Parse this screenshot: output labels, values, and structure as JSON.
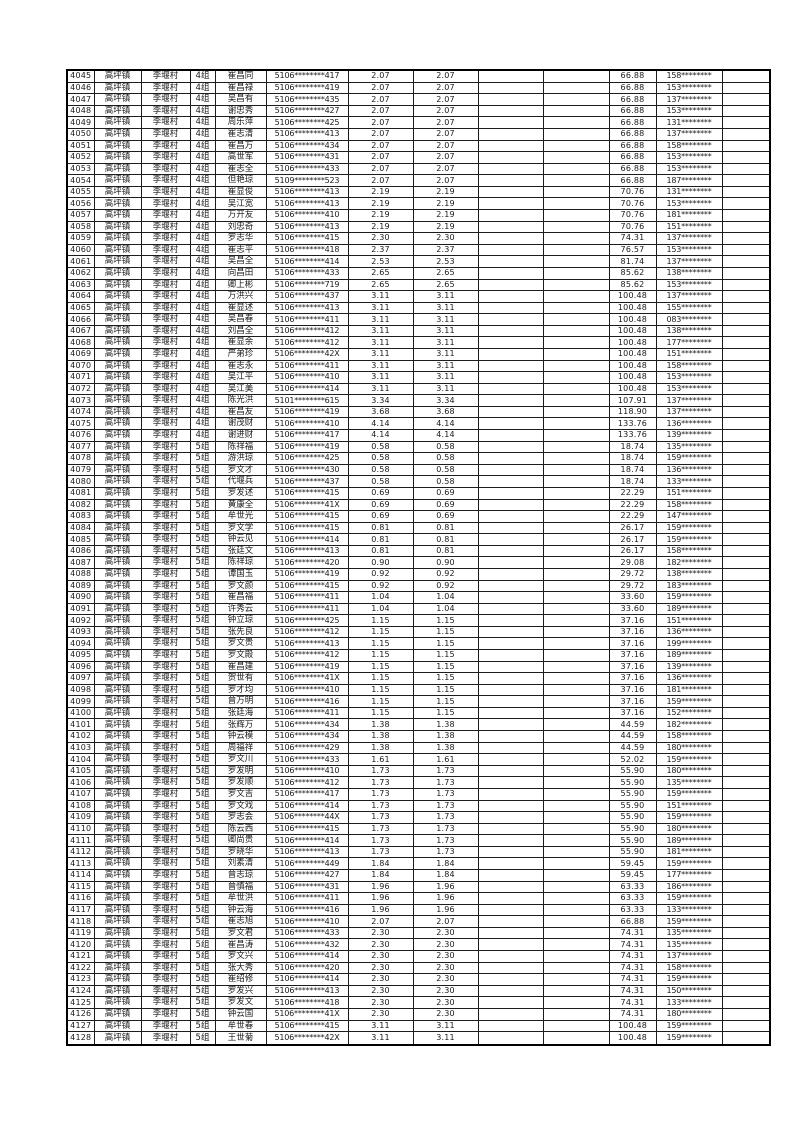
{
  "page": {
    "background": "#ffffff",
    "text_color": "#1a1a1a",
    "border_color": "#000000"
  },
  "table": {
    "town": "高坪镇",
    "village": "李堰村",
    "rows": [
      [
        "4045",
        "4组",
        "崔昌同",
        "5106********417",
        "2.07",
        "2.07",
        "66.88",
        "158********"
      ],
      [
        "4046",
        "4组",
        "崔昌禄",
        "5106********419",
        "2.07",
        "2.07",
        "66.88",
        "153********"
      ],
      [
        "4047",
        "4组",
        "吴昌有",
        "5106********435",
        "2.07",
        "2.07",
        "66.88",
        "137********"
      ],
      [
        "4048",
        "4组",
        "谢忠秀",
        "5106********427",
        "2.07",
        "2.07",
        "66.88",
        "153********"
      ],
      [
        "4049",
        "4组",
        "周乐萍",
        "5106********425",
        "2.07",
        "2.07",
        "66.88",
        "131********"
      ],
      [
        "4050",
        "4组",
        "崔志清",
        "5106********413",
        "2.07",
        "2.07",
        "66.88",
        "137********"
      ],
      [
        "4051",
        "4组",
        "崔昌万",
        "5106********434",
        "2.07",
        "2.07",
        "66.88",
        "158********"
      ],
      [
        "4052",
        "4组",
        "高世军",
        "5106********431",
        "2.07",
        "2.07",
        "66.88",
        "153********"
      ],
      [
        "4053",
        "4组",
        "崔志全",
        "5106********433",
        "2.07",
        "2.07",
        "66.88",
        "153********"
      ],
      [
        "4054",
        "4组",
        "但艳琼",
        "5109********523",
        "2.07",
        "2.07",
        "66.88",
        "187********"
      ],
      [
        "4055",
        "4组",
        "崔显俊",
        "5106********413",
        "2.19",
        "2.19",
        "70.76",
        "131********"
      ],
      [
        "4056",
        "4组",
        "吴江宽",
        "5106********413",
        "2.19",
        "2.19",
        "70.76",
        "153********"
      ],
      [
        "4057",
        "4组",
        "万开友",
        "5106********410",
        "2.19",
        "2.19",
        "70.76",
        "181********"
      ],
      [
        "4058",
        "4组",
        "刘忠奇",
        "5106********413",
        "2.19",
        "2.19",
        "70.76",
        "151********"
      ],
      [
        "4059",
        "4组",
        "罗志华",
        "5106********415",
        "2.30",
        "2.30",
        "74.31",
        "137********"
      ],
      [
        "4060",
        "4组",
        "崔志平",
        "5106********418",
        "2.37",
        "2.37",
        "76.57",
        "153********"
      ],
      [
        "4061",
        "4组",
        "吴昌全",
        "5106********414",
        "2.53",
        "2.53",
        "81.74",
        "137********"
      ],
      [
        "4062",
        "4组",
        "向昌田",
        "5106********433",
        "2.65",
        "2.65",
        "85.62",
        "138********"
      ],
      [
        "4063",
        "4组",
        "卿上彬",
        "5106********719",
        "2.65",
        "2.65",
        "85.62",
        "153********"
      ],
      [
        "4064",
        "4组",
        "万洪兴",
        "5106********437",
        "3.11",
        "3.11",
        "100.48",
        "137********"
      ],
      [
        "4065",
        "4组",
        "崔显述",
        "5106********413",
        "3.11",
        "3.11",
        "100.48",
        "155********"
      ],
      [
        "4066",
        "4组",
        "吴昌春",
        "5106********411",
        "3.11",
        "3.11",
        "100.48",
        "083********"
      ],
      [
        "4067",
        "4组",
        "刘昌全",
        "5106********412",
        "3.11",
        "3.11",
        "100.48",
        "138********"
      ],
      [
        "4068",
        "4组",
        "崔显余",
        "5106********412",
        "3.11",
        "3.11",
        "100.48",
        "177********"
      ],
      [
        "4069",
        "4组",
        "严弟珍",
        "5106********42X",
        "3.11",
        "3.11",
        "100.48",
        "151********"
      ],
      [
        "4070",
        "4组",
        "崔志永",
        "5106********411",
        "3.11",
        "3.11",
        "100.48",
        "158********"
      ],
      [
        "4071",
        "4组",
        "吴江平",
        "5106********410",
        "3.11",
        "3.11",
        "100.48",
        "153********"
      ],
      [
        "4072",
        "4组",
        "吴江美",
        "5106********414",
        "3.11",
        "3.11",
        "100.48",
        "153********"
      ],
      [
        "4073",
        "4组",
        "陈光洪",
        "5101********615",
        "3.34",
        "3.34",
        "107.91",
        "137********"
      ],
      [
        "4074",
        "4组",
        "崔昌友",
        "5106********419",
        "3.68",
        "3.68",
        "118.90",
        "137********"
      ],
      [
        "4075",
        "4组",
        "谢茂财",
        "5106********410",
        "4.14",
        "4.14",
        "133.76",
        "136********"
      ],
      [
        "4076",
        "4组",
        "谢进财",
        "5106********417",
        "4.14",
        "4.14",
        "133.76",
        "139********"
      ],
      [
        "4077",
        "5组",
        "陈祥福",
        "5106********419",
        "0.58",
        "0.58",
        "18.74",
        "135********"
      ],
      [
        "4078",
        "5组",
        "游洪琼",
        "5106********425",
        "0.58",
        "0.58",
        "18.74",
        "159********"
      ],
      [
        "4079",
        "5组",
        "罗文才",
        "5106********430",
        "0.58",
        "0.58",
        "18.74",
        "136********"
      ],
      [
        "4080",
        "5组",
        "代堰兵",
        "5106********437",
        "0.58",
        "0.58",
        "18.74",
        "133********"
      ],
      [
        "4081",
        "5组",
        "罗发述",
        "5106********415",
        "0.69",
        "0.69",
        "22.29",
        "151********"
      ],
      [
        "4082",
        "5组",
        "黄康全",
        "5106********41X",
        "0.69",
        "0.69",
        "22.29",
        "158********"
      ],
      [
        "4083",
        "5组",
        "牟世光",
        "5106********415",
        "0.69",
        "0.69",
        "22.29",
        "147********"
      ],
      [
        "4084",
        "5组",
        "罗文学",
        "5106********415",
        "0.81",
        "0.81",
        "26.17",
        "159********"
      ],
      [
        "4085",
        "5组",
        "钟云见",
        "5106********414",
        "0.81",
        "0.81",
        "26.17",
        "159********"
      ],
      [
        "4086",
        "5组",
        "张廷文",
        "5106********413",
        "0.81",
        "0.81",
        "26.17",
        "158********"
      ],
      [
        "4087",
        "5组",
        "陈祥琼",
        "5106********420",
        "0.90",
        "0.90",
        "29.08",
        "182********"
      ],
      [
        "4088",
        "5组",
        "谭国玉",
        "5106********419",
        "0.92",
        "0.92",
        "29.72",
        "138********"
      ],
      [
        "4089",
        "5组",
        "罗文颜",
        "5106********415",
        "0.92",
        "0.92",
        "29.72",
        "183********"
      ],
      [
        "4090",
        "5组",
        "崔昌福",
        "5106********411",
        "1.04",
        "1.04",
        "33.60",
        "159********"
      ],
      [
        "4091",
        "5组",
        "许秀云",
        "5106********411",
        "1.04",
        "1.04",
        "33.60",
        "189********"
      ],
      [
        "4092",
        "5组",
        "钟立琼",
        "5106********425",
        "1.15",
        "1.15",
        "37.16",
        "151********"
      ],
      [
        "4093",
        "5组",
        "张先良",
        "5106********412",
        "1.15",
        "1.15",
        "37.16",
        "136********"
      ],
      [
        "4094",
        "5组",
        "罗文贵",
        "5106********413",
        "1.15",
        "1.15",
        "37.16",
        "199********"
      ],
      [
        "4095",
        "5组",
        "罗文殿",
        "5106********412",
        "1.15",
        "1.15",
        "37.16",
        "189********"
      ],
      [
        "4096",
        "5组",
        "崔昌建",
        "5106********419",
        "1.15",
        "1.15",
        "37.16",
        "139********"
      ],
      [
        "4097",
        "5组",
        "贺世有",
        "5106********41X",
        "1.15",
        "1.15",
        "37.16",
        "136********"
      ],
      [
        "4098",
        "5组",
        "罗才均",
        "5106********410",
        "1.15",
        "1.15",
        "37.16",
        "181********"
      ],
      [
        "4099",
        "5组",
        "曾万明",
        "5106********416",
        "1.15",
        "1.15",
        "37.16",
        "159********"
      ],
      [
        "4100",
        "5组",
        "张廷海",
        "5106********411",
        "1.15",
        "1.15",
        "37.16",
        "152********"
      ],
      [
        "4101",
        "5组",
        "张辉万",
        "5106********434",
        "1.38",
        "1.38",
        "44.59",
        "182********"
      ],
      [
        "4102",
        "5组",
        "钟云模",
        "5106********434",
        "1.38",
        "1.38",
        "44.59",
        "158********"
      ],
      [
        "4103",
        "5组",
        "周福祥",
        "5106********429",
        "1.38",
        "1.38",
        "44.59",
        "180********"
      ],
      [
        "4104",
        "5组",
        "罗文川",
        "5106********433",
        "1.61",
        "1.61",
        "52.02",
        "159********"
      ],
      [
        "4105",
        "5组",
        "罗发明",
        "5106********410",
        "1.73",
        "1.73",
        "55.90",
        "180********"
      ],
      [
        "4106",
        "5组",
        "罗发顺",
        "5106********412",
        "1.73",
        "1.73",
        "55.90",
        "135********"
      ],
      [
        "4107",
        "5组",
        "罗文吉",
        "5106********417",
        "1.73",
        "1.73",
        "55.90",
        "159********"
      ],
      [
        "4108",
        "5组",
        "罗文戏",
        "5106********414",
        "1.73",
        "1.73",
        "55.90",
        "151********"
      ],
      [
        "4109",
        "5组",
        "罗志会",
        "5106********44X",
        "1.73",
        "1.73",
        "55.90",
        "159********"
      ],
      [
        "4110",
        "5组",
        "陈云西",
        "5106********415",
        "1.73",
        "1.73",
        "55.90",
        "180********"
      ],
      [
        "4111",
        "5组",
        "卿尚贵",
        "5106********414",
        "1.73",
        "1.73",
        "55.90",
        "189********"
      ],
      [
        "4112",
        "5组",
        "罗晓华",
        "5106********413",
        "1.73",
        "1.73",
        "55.90",
        "181********"
      ],
      [
        "4113",
        "5组",
        "刘素清",
        "5106********449",
        "1.84",
        "1.84",
        "59.45",
        "159********"
      ],
      [
        "4114",
        "5组",
        "曾志琼",
        "5106********427",
        "1.84",
        "1.84",
        "59.45",
        "177********"
      ],
      [
        "4115",
        "5组",
        "曾慎福",
        "5106********431",
        "1.96",
        "1.96",
        "63.33",
        "186********"
      ],
      [
        "4116",
        "5组",
        "牟世洪",
        "5106********411",
        "1.96",
        "1.96",
        "63.33",
        "159********"
      ],
      [
        "4117",
        "5组",
        "钟云海",
        "5106********416",
        "1.96",
        "1.96",
        "63.33",
        "133********"
      ],
      [
        "4118",
        "5组",
        "崔志旭",
        "5106********410",
        "2.07",
        "2.07",
        "66.88",
        "159********"
      ],
      [
        "4119",
        "5组",
        "罗文君",
        "5106********433",
        "2.30",
        "2.30",
        "74.31",
        "135********"
      ],
      [
        "4120",
        "5组",
        "崔昌涛",
        "5106********432",
        "2.30",
        "2.30",
        "74.31",
        "135********"
      ],
      [
        "4121",
        "5组",
        "罗文兴",
        "5106********414",
        "2.30",
        "2.30",
        "74.31",
        "137********"
      ],
      [
        "4122",
        "5组",
        "张大秀",
        "5106********420",
        "2.30",
        "2.30",
        "74.31",
        "158********"
      ],
      [
        "4123",
        "5组",
        "崔绍修",
        "5106********414",
        "2.30",
        "2.30",
        "74.31",
        "159********"
      ],
      [
        "4124",
        "5组",
        "罗发兴",
        "5106********413",
        "2.30",
        "2.30",
        "74.31",
        "150********"
      ],
      [
        "4125",
        "5组",
        "罗发文",
        "5106********418",
        "2.30",
        "2.30",
        "74.31",
        "133********"
      ],
      [
        "4126",
        "5组",
        "钟云国",
        "5106********41X",
        "2.30",
        "2.30",
        "74.31",
        "180********"
      ],
      [
        "4127",
        "5组",
        "牟世春",
        "5106********415",
        "3.11",
        "3.11",
        "100.48",
        "159********"
      ],
      [
        "4128",
        "5组",
        "王世菊",
        "5106********42X",
        "3.11",
        "3.11",
        "100.48",
        "159********"
      ]
    ]
  }
}
